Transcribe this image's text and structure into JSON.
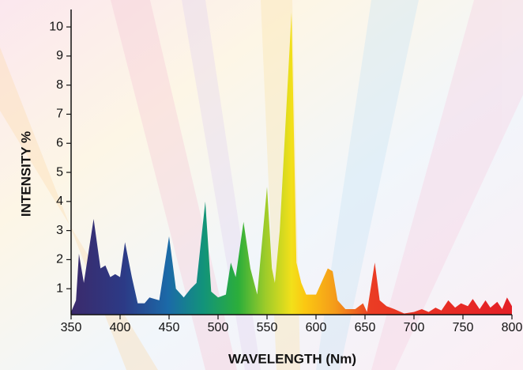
{
  "chart_data": {
    "type": "area",
    "x_label": "WAVELENGTH (Nm)",
    "y_label": "INTENSITY %",
    "x": [
      350,
      355,
      358,
      363,
      373,
      380,
      385,
      390,
      395,
      400,
      405,
      412,
      418,
      425,
      430,
      440,
      450,
      457,
      465,
      472,
      478,
      487,
      493,
      500,
      508,
      513,
      518,
      526,
      533,
      540,
      550,
      555,
      558,
      563,
      575,
      580,
      585,
      590,
      600,
      612,
      617,
      622,
      630,
      640,
      648,
      652,
      660,
      665,
      672,
      680,
      690,
      700,
      708,
      715,
      722,
      728,
      735,
      742,
      748,
      755,
      760,
      767,
      773,
      778,
      785,
      790,
      795,
      800
    ],
    "values": [
      0.2,
      0.6,
      2.2,
      1.2,
      3.4,
      1.7,
      1.8,
      1.4,
      1.5,
      1.4,
      2.6,
      1.4,
      0.5,
      0.5,
      0.7,
      0.6,
      2.8,
      1.0,
      0.7,
      1.0,
      1.2,
      4.0,
      0.9,
      0.7,
      0.8,
      1.9,
      1.4,
      3.3,
      1.7,
      0.8,
      4.5,
      1.7,
      1.2,
      3.0,
      10.5,
      1.9,
      1.2,
      0.8,
      0.8,
      1.7,
      1.6,
      0.6,
      0.3,
      0.3,
      0.5,
      0.2,
      1.9,
      0.6,
      0.4,
      0.3,
      0.15,
      0.2,
      0.3,
      0.2,
      0.35,
      0.25,
      0.6,
      0.35,
      0.5,
      0.4,
      0.65,
      0.3,
      0.6,
      0.35,
      0.55,
      0.3,
      0.7,
      0.4
    ],
    "xlim": [
      350,
      800
    ],
    "ylim": [
      0,
      10.6
    ],
    "xticks": [
      350,
      400,
      450,
      500,
      550,
      600,
      650,
      700,
      750,
      800
    ],
    "yticks": [
      1,
      2,
      3,
      4,
      5,
      6,
      7,
      8,
      9,
      10
    ]
  }
}
